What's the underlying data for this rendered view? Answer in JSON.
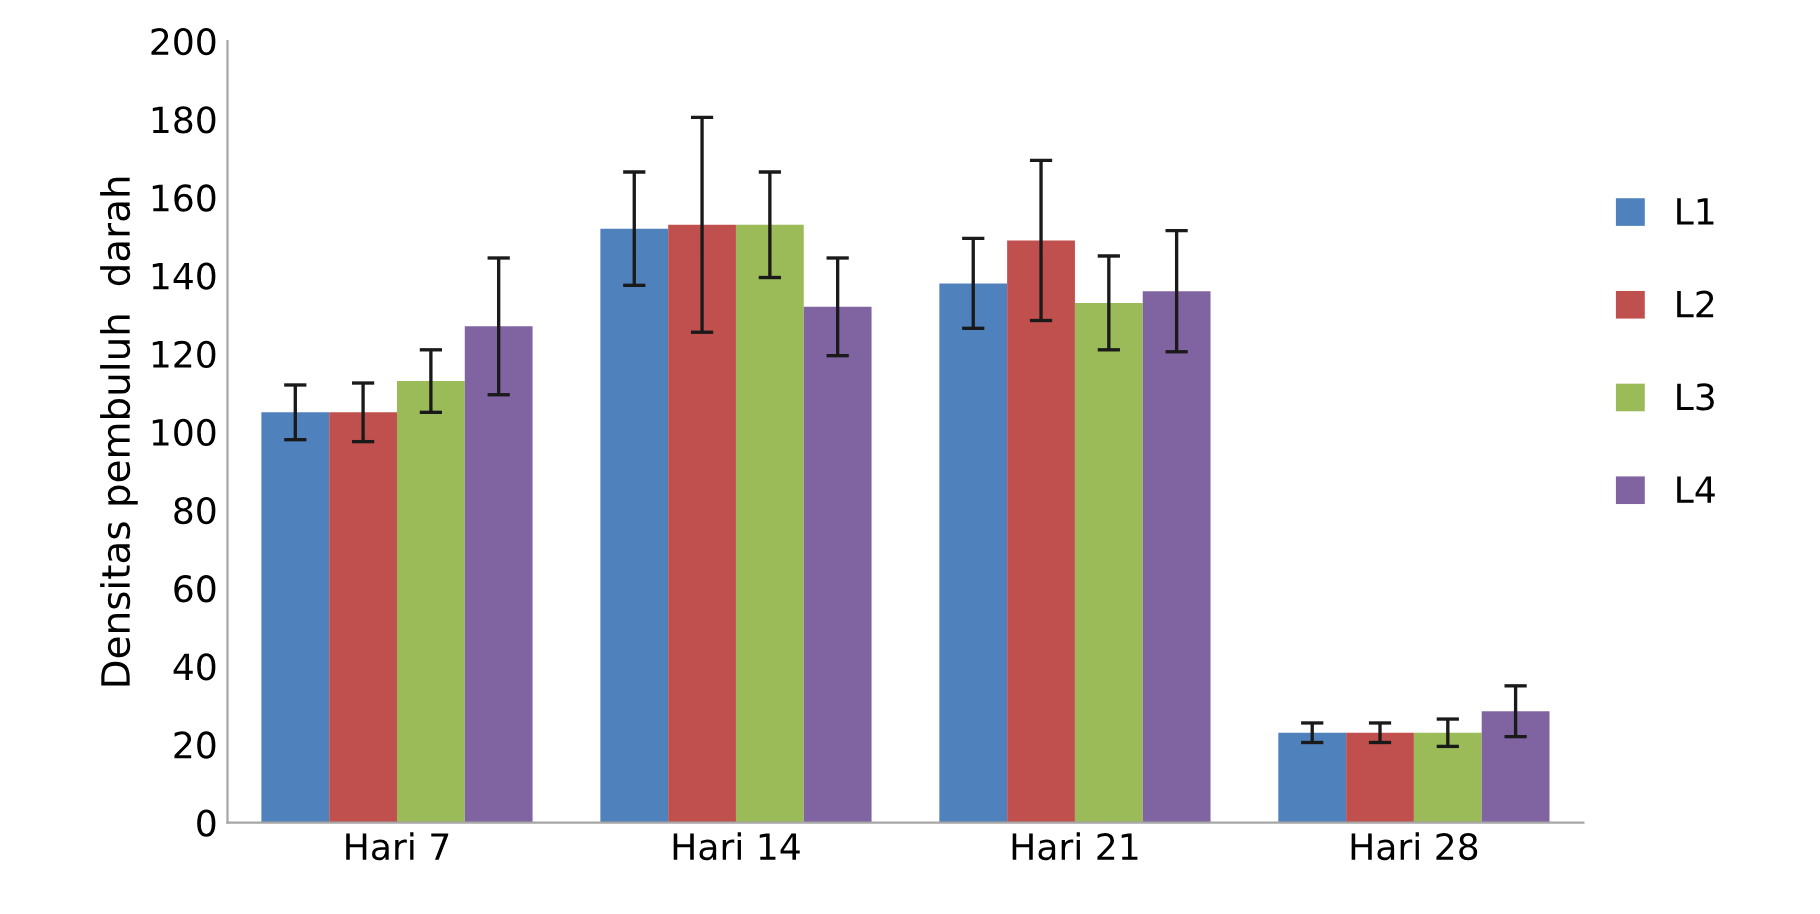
{
  "chart_data": {
    "type": "bar",
    "ylabel": "Densitas pembuluh  darah",
    "categories": [
      "Hari 7",
      "Hari 14",
      "Hari 21",
      "Hari 28"
    ],
    "series": [
      {
        "name": "L1",
        "color": "#4f81bd",
        "values": [
          105,
          152,
          138,
          23
        ],
        "errors": [
          7,
          14.5,
          11.5,
          2.5
        ]
      },
      {
        "name": "L2",
        "color": "#c0504d",
        "values": [
          105,
          153,
          149,
          23
        ],
        "errors": [
          7.5,
          27.5,
          20.5,
          2.5
        ]
      },
      {
        "name": "L3",
        "color": "#9bbb59",
        "values": [
          113,
          153,
          133,
          23
        ],
        "errors": [
          8,
          13.5,
          12,
          3.5
        ]
      },
      {
        "name": "L4",
        "color": "#8064a2",
        "values": [
          127,
          132,
          136,
          28.5
        ],
        "errors": [
          17.5,
          12.5,
          15.5,
          6.5
        ]
      }
    ],
    "ylim": [
      0,
      200
    ],
    "yticks": [
      0,
      20,
      40,
      60,
      80,
      100,
      120,
      140,
      160,
      180,
      200
    ],
    "grid": false,
    "legend": "right"
  }
}
